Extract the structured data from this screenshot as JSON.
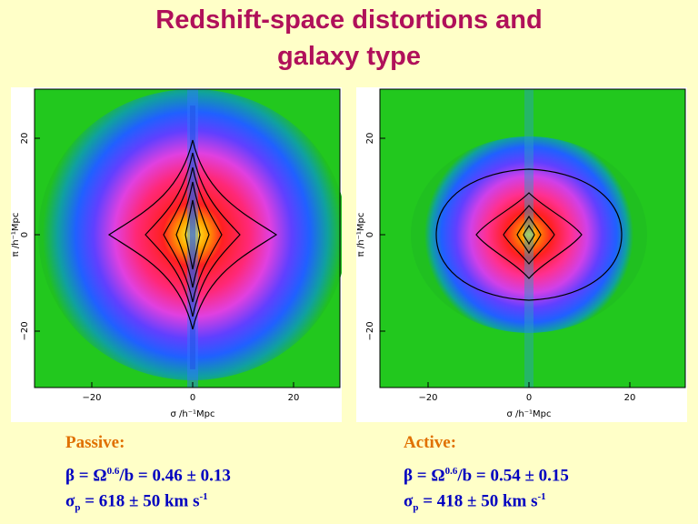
{
  "title": {
    "line1": "Redshift-space distortions and",
    "line2": "galaxy type"
  },
  "plot_labels": {
    "x_label": "σ   /h⁻¹Mpc",
    "y_label": "π   /h⁻¹Mpc",
    "x_ticks": [
      "−20",
      "0",
      "20"
    ],
    "y_ticks": [
      "20",
      "0",
      "−20"
    ]
  },
  "panels": [
    {
      "heading": "Passive:",
      "beta_lhs": "β  =  Ω",
      "omega_exp": "0.6",
      "beta_mid": "/b  =  0.46 ± 0.13",
      "sigma_lhs": "σ",
      "sigma_sub": "p",
      "sigma_rhs": " =  618 ± 50 km s",
      "sigma_exp": "-1"
    },
    {
      "heading": "Active:",
      "beta_lhs": "β  =  Ω",
      "omega_exp": "0.6",
      "beta_mid": "/b  =  0.54 ± 0.15",
      "sigma_lhs": "σ",
      "sigma_sub": "p",
      "sigma_rhs": " =  418 ± 50 km s",
      "sigma_exp": "-1"
    }
  ]
}
